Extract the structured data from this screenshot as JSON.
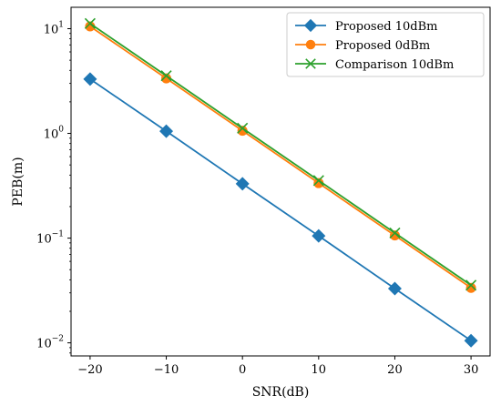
{
  "chart_data": {
    "type": "line",
    "xlabel": "SNR(dB)",
    "ylabel": "PEB(m)",
    "x": [
      -20,
      -10,
      0,
      10,
      20,
      30
    ],
    "xticks": [
      {
        "value": -20,
        "label": "−20"
      },
      {
        "value": -10,
        "label": "−10"
      },
      {
        "value": 0,
        "label": "0"
      },
      {
        "value": 10,
        "label": "10"
      },
      {
        "value": 20,
        "label": "20"
      },
      {
        "value": 30,
        "label": "30"
      }
    ],
    "xlim": [
      -22.5,
      32.5
    ],
    "yscale": "log",
    "ylim": [
      0.0075,
      16
    ],
    "yticks": [
      {
        "value": 0.01,
        "base": "10",
        "exp": "−2"
      },
      {
        "value": 0.1,
        "base": "10",
        "exp": "−1"
      },
      {
        "value": 1,
        "base": "10",
        "exp": "0"
      },
      {
        "value": 10,
        "base": "10",
        "exp": "1"
      }
    ],
    "grid": false,
    "legend_position": "top-right",
    "series": [
      {
        "name": "Proposed 10dBm",
        "color": "#1f77b4",
        "marker": "diamond",
        "values": [
          3.3,
          1.05,
          0.33,
          0.105,
          0.033,
          0.0105
        ]
      },
      {
        "name": "Proposed 0dBm",
        "color": "#ff7f0e",
        "marker": "circle",
        "values": [
          10.5,
          3.35,
          1.06,
          0.335,
          0.106,
          0.0335
        ]
      },
      {
        "name": "Comparison 10dBm",
        "color": "#2ca02c",
        "marker": "x",
        "values": [
          11.2,
          3.55,
          1.12,
          0.355,
          0.112,
          0.0355
        ]
      }
    ]
  }
}
